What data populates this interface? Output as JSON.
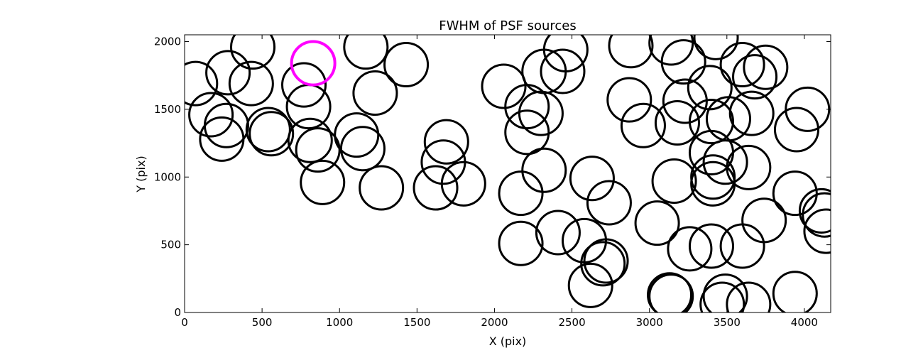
{
  "chart_data": {
    "type": "scatter",
    "title": "FWHM of PSF sources",
    "xlabel": "X (pix)",
    "ylabel": "Y (pix)",
    "xlim": [
      0,
      4170
    ],
    "ylim": [
      0,
      2050
    ],
    "xticks": [
      0,
      500,
      1000,
      1500,
      2000,
      2500,
      3000,
      3500,
      4000
    ],
    "yticks": [
      0,
      500,
      1000,
      1500,
      2000
    ],
    "grid": false,
    "marker": "open-circle",
    "marker_radius_data_units_y": 160,
    "colors": {
      "default": "#000000",
      "highlight": "#ff00ff"
    },
    "sources": [
      {
        "x": 70,
        "y": 1690
      },
      {
        "x": 280,
        "y": 1770
      },
      {
        "x": 440,
        "y": 1960
      },
      {
        "x": 430,
        "y": 1690
      },
      {
        "x": 170,
        "y": 1460
      },
      {
        "x": 270,
        "y": 1380
      },
      {
        "x": 240,
        "y": 1280
      },
      {
        "x": 540,
        "y": 1350
      },
      {
        "x": 560,
        "y": 1320
      },
      {
        "x": 770,
        "y": 1680
      },
      {
        "x": 830,
        "y": 1840,
        "highlight": true
      },
      {
        "x": 800,
        "y": 1520
      },
      {
        "x": 810,
        "y": 1270
      },
      {
        "x": 860,
        "y": 1200
      },
      {
        "x": 890,
        "y": 960
      },
      {
        "x": 1170,
        "y": 1960
      },
      {
        "x": 1430,
        "y": 1830
      },
      {
        "x": 1230,
        "y": 1620
      },
      {
        "x": 1110,
        "y": 1310
      },
      {
        "x": 1150,
        "y": 1210
      },
      {
        "x": 1270,
        "y": 920
      },
      {
        "x": 1690,
        "y": 1260
      },
      {
        "x": 1670,
        "y": 1110
      },
      {
        "x": 1620,
        "y": 920
      },
      {
        "x": 1800,
        "y": 950
      },
      {
        "x": 2060,
        "y": 1670
      },
      {
        "x": 2210,
        "y": 1520
      },
      {
        "x": 2300,
        "y": 1470
      },
      {
        "x": 2320,
        "y": 1780
      },
      {
        "x": 2440,
        "y": 1780
      },
      {
        "x": 2460,
        "y": 1940
      },
      {
        "x": 2210,
        "y": 1330
      },
      {
        "x": 2320,
        "y": 1050
      },
      {
        "x": 2170,
        "y": 880
      },
      {
        "x": 2170,
        "y": 510
      },
      {
        "x": 2410,
        "y": 590
      },
      {
        "x": 2580,
        "y": 530
      },
      {
        "x": 2630,
        "y": 990
      },
      {
        "x": 2740,
        "y": 810
      },
      {
        "x": 2720,
        "y": 380
      },
      {
        "x": 2700,
        "y": 360
      },
      {
        "x": 2620,
        "y": 200
      },
      {
        "x": 2880,
        "y": 1970
      },
      {
        "x": 2870,
        "y": 1570
      },
      {
        "x": 2960,
        "y": 1380
      },
      {
        "x": 3140,
        "y": 1990
      },
      {
        "x": 3220,
        "y": 1850
      },
      {
        "x": 3230,
        "y": 1560
      },
      {
        "x": 3180,
        "y": 1400
      },
      {
        "x": 3390,
        "y": 1660
      },
      {
        "x": 3400,
        "y": 1410
      },
      {
        "x": 3430,
        "y": 2030
      },
      {
        "x": 3510,
        "y": 1430
      },
      {
        "x": 3600,
        "y": 1830
      },
      {
        "x": 3680,
        "y": 1740
      },
      {
        "x": 3750,
        "y": 1810
      },
      {
        "x": 3660,
        "y": 1470
      },
      {
        "x": 3400,
        "y": 1180
      },
      {
        "x": 3490,
        "y": 1110
      },
      {
        "x": 3410,
        "y": 1000
      },
      {
        "x": 3410,
        "y": 950
      },
      {
        "x": 3640,
        "y": 1070
      },
      {
        "x": 3160,
        "y": 970
      },
      {
        "x": 3050,
        "y": 660
      },
      {
        "x": 3260,
        "y": 470
      },
      {
        "x": 3400,
        "y": 490
      },
      {
        "x": 3600,
        "y": 490
      },
      {
        "x": 3740,
        "y": 680
      },
      {
        "x": 3130,
        "y": 130
      },
      {
        "x": 3140,
        "y": 120
      },
      {
        "x": 3490,
        "y": 120
      },
      {
        "x": 3470,
        "y": 60
      },
      {
        "x": 3640,
        "y": 60
      },
      {
        "x": 3940,
        "y": 140
      },
      {
        "x": 3940,
        "y": 880
      },
      {
        "x": 4020,
        "y": 1500
      },
      {
        "x": 3950,
        "y": 1350
      },
      {
        "x": 4110,
        "y": 750
      },
      {
        "x": 4130,
        "y": 720
      },
      {
        "x": 4140,
        "y": 600
      }
    ]
  }
}
